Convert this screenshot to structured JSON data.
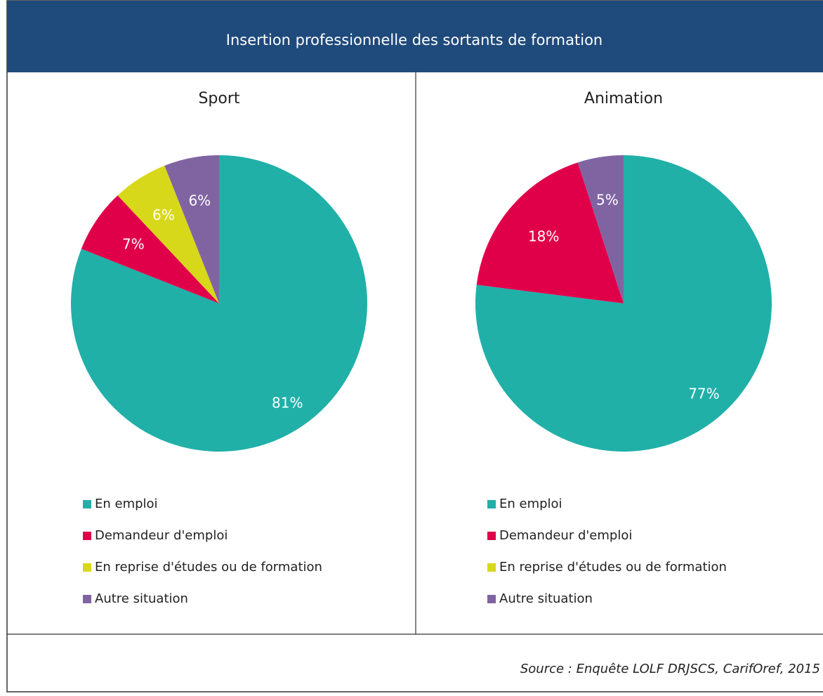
{
  "header": {
    "title": "Insertion professionnelle des sortants de formation"
  },
  "chart_data": [
    {
      "type": "pie",
      "title": "Sport",
      "categories": [
        "En emploi",
        "Demandeur d'emploi",
        "En reprise d'études ou de formation",
        "Autre situation"
      ],
      "colors": [
        "#20b0a8",
        "#e0004a",
        "#d8d81a",
        "#8064a2"
      ],
      "values": [
        81,
        7,
        6,
        6
      ],
      "value_labels": [
        "81%",
        "7%",
        "6%",
        "6%"
      ]
    },
    {
      "type": "pie",
      "title": "Animation",
      "categories": [
        "En emploi",
        "Demandeur d'emploi",
        "En reprise d'études ou de formation",
        "Autre situation"
      ],
      "colors": [
        "#20b0a8",
        "#e0004a",
        "#d8d81a",
        "#8064a2"
      ],
      "values": [
        77,
        18,
        0,
        5
      ],
      "value_labels": [
        "77%",
        "18%",
        null,
        "5%"
      ]
    }
  ],
  "source": "Source : Enquête LOLF DRJSCS, CarifOref, 2015"
}
